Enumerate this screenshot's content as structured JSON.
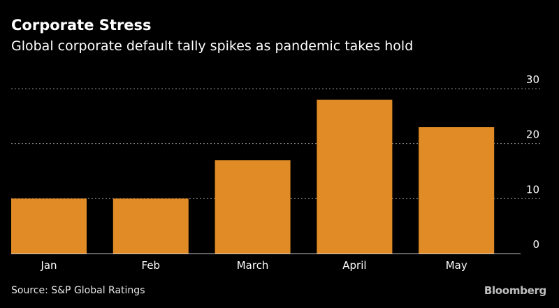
{
  "title": "Corporate Stress",
  "subtitle": "Global corporate default tally spikes as pandemic takes hold",
  "source": "Source: S&P Global Ratings",
  "brand": "Bloomberg",
  "colors": {
    "bar": "#e08b25",
    "grid": "#8c8c8c",
    "axis": "#cccccc",
    "text": "#ffffff"
  },
  "chart_data": {
    "type": "bar",
    "categories": [
      "Jan",
      "Feb",
      "March",
      "April",
      "May"
    ],
    "values": [
      10,
      10,
      17,
      28,
      23
    ],
    "ylim": [
      0,
      30
    ],
    "yticks": [
      0,
      10,
      20,
      30
    ],
    "grid": true,
    "xlabel": "",
    "ylabel": ""
  }
}
